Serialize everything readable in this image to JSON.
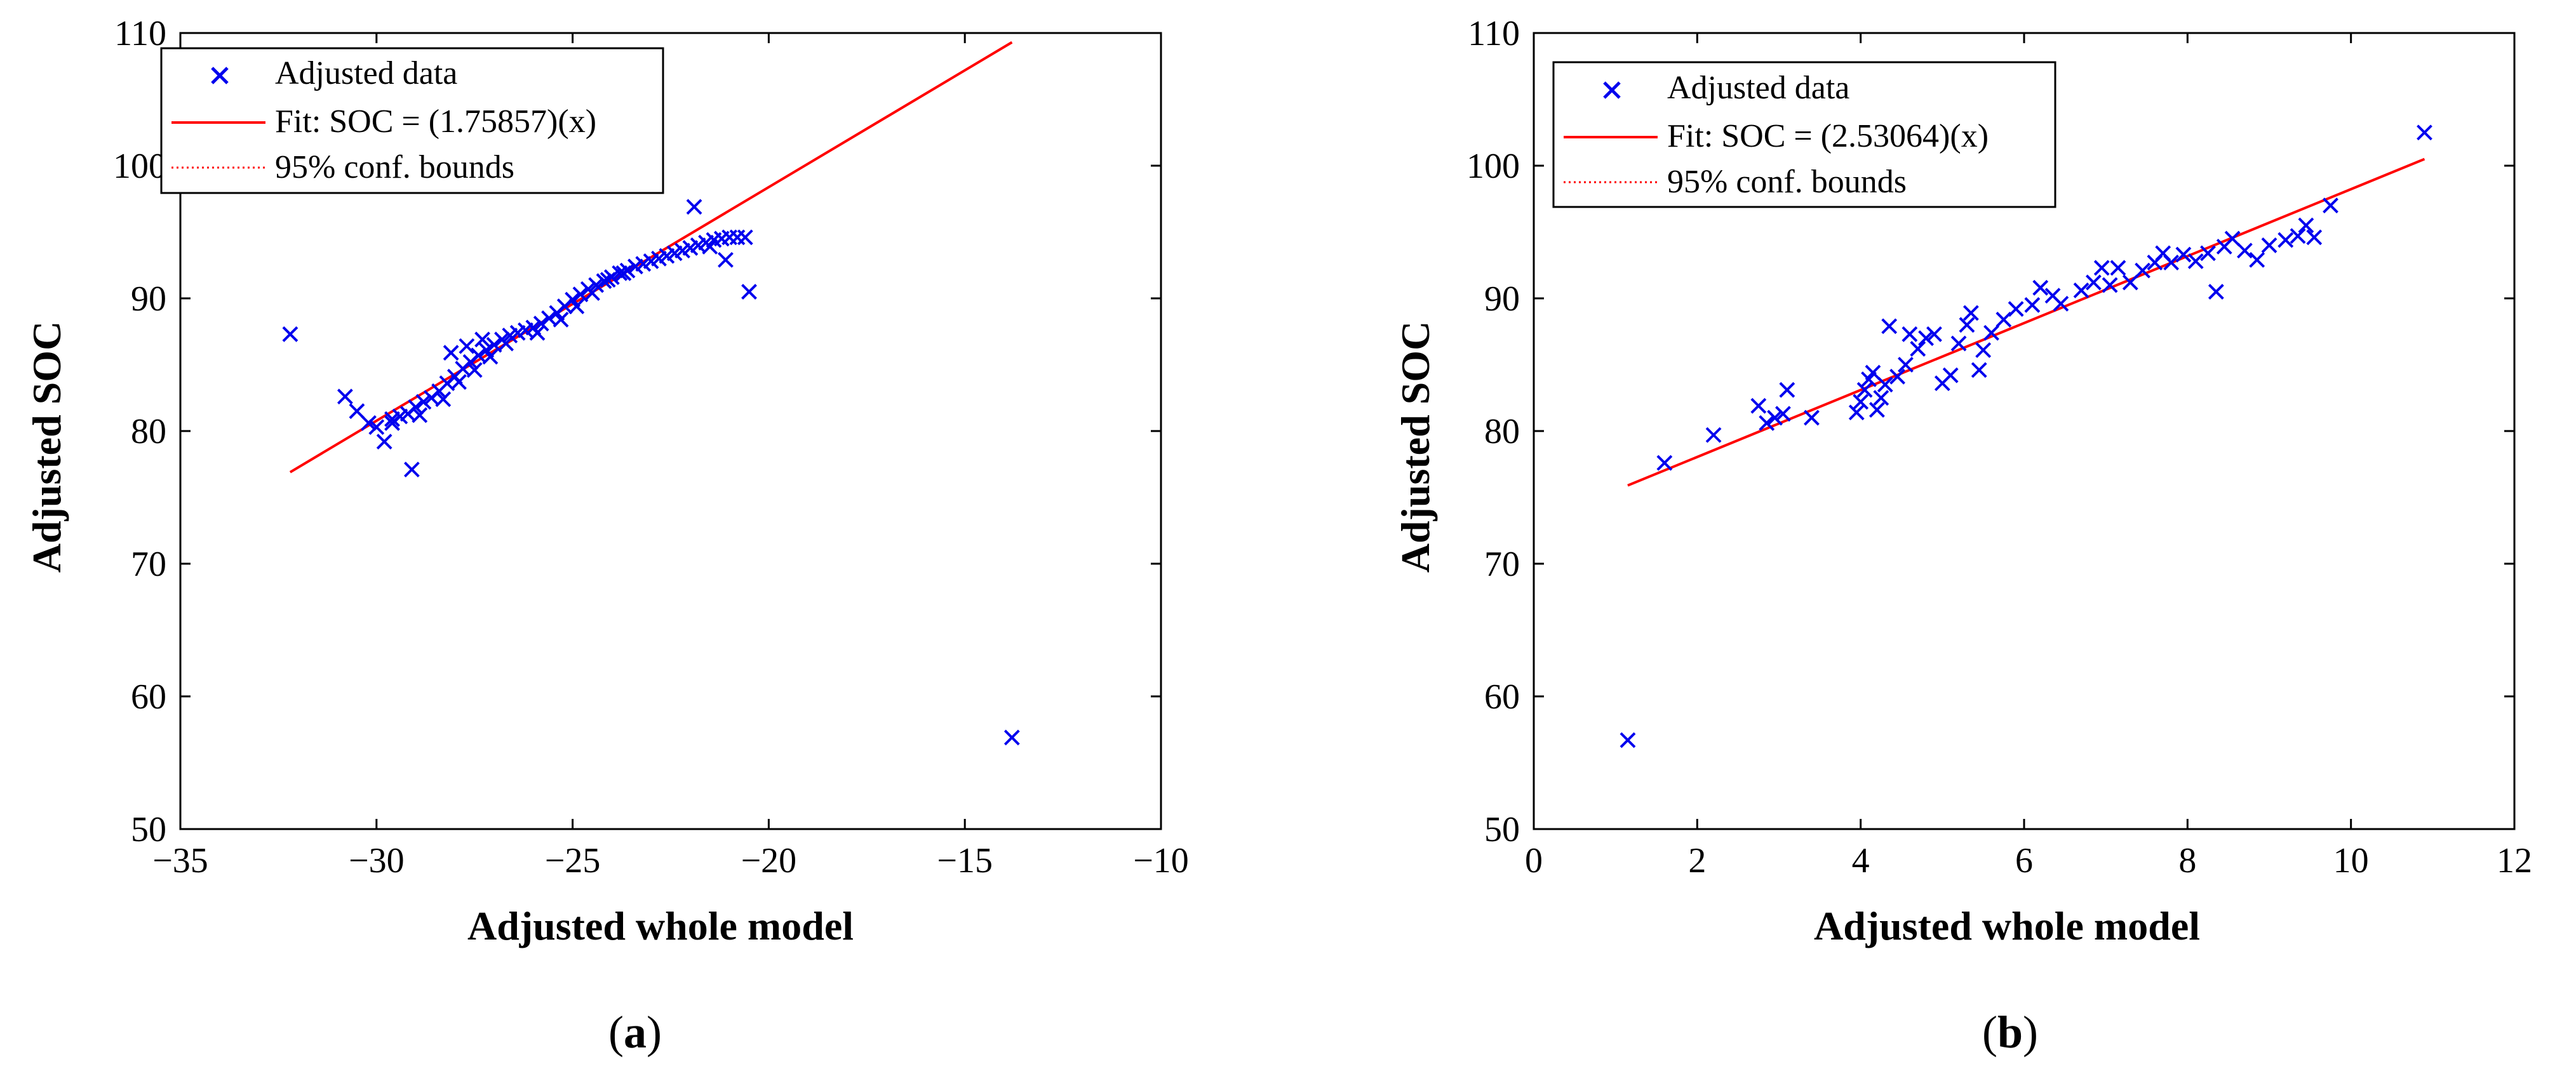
{
  "chart_data": [
    {
      "type": "scatter",
      "panel_label": "(a)",
      "panel_letter": "a",
      "xlabel": "Adjusted whole model",
      "ylabel": "Adjusted SOC",
      "xlim": [
        -35,
        -10
      ],
      "ylim": [
        50,
        110
      ],
      "xticks": [
        -35,
        -30,
        -25,
        -20,
        -15,
        -10
      ],
      "xtick_labels": [
        "−35",
        "−30",
        "−25",
        "−20",
        "−15",
        "−10"
      ],
      "yticks": [
        50,
        60,
        70,
        80,
        90,
        100,
        110
      ],
      "ytick_labels": [
        "50",
        "60",
        "70",
        "80",
        "90",
        "100",
        "110"
      ],
      "legend": {
        "placement": "top-left",
        "entries": [
          "Adjusted data",
          "Fit: SOC = (1.75857)(x)",
          "95% conf. bounds"
        ]
      },
      "colors": {
        "data": "#0000ee",
        "fit": "#ff0000",
        "bounds": "#ff0000",
        "axes": "#000000"
      },
      "fit_line": {
        "x": [
          -32.2,
          -13.8
        ],
        "y": [
          76.9,
          109.3
        ]
      },
      "series": [
        {
          "name": "Adjusted data",
          "marker": "x",
          "points": [
            [
              -32.2,
              87.3
            ],
            [
              -30.8,
              82.6
            ],
            [
              -30.5,
              81.5
            ],
            [
              -30.2,
              80.6
            ],
            [
              -30.0,
              80.3
            ],
            [
              -29.8,
              79.2
            ],
            [
              -29.6,
              80.9
            ],
            [
              -29.4,
              81.1
            ],
            [
              -29.2,
              81.3
            ],
            [
              -29.1,
              77.1
            ],
            [
              -29.0,
              81.8
            ],
            [
              -28.8,
              82.2
            ],
            [
              -28.6,
              82.5
            ],
            [
              -28.4,
              83.0
            ],
            [
              -28.2,
              83.6
            ],
            [
              -28.0,
              84.1
            ],
            [
              -27.8,
              84.7
            ],
            [
              -27.6,
              85.2
            ],
            [
              -27.4,
              85.7
            ],
            [
              -27.2,
              86.1
            ],
            [
              -27.0,
              86.5
            ],
            [
              -26.8,
              86.9
            ],
            [
              -26.6,
              87.2
            ],
            [
              -26.4,
              87.4
            ],
            [
              -26.2,
              87.6
            ],
            [
              -26.0,
              87.8
            ],
            [
              -25.8,
              88.1
            ],
            [
              -25.6,
              88.5
            ],
            [
              -25.4,
              88.9
            ],
            [
              -25.2,
              89.4
            ],
            [
              -25.0,
              89.9
            ],
            [
              -24.8,
              90.3
            ],
            [
              -24.6,
              90.7
            ],
            [
              -24.4,
              91.0
            ],
            [
              -24.2,
              91.3
            ],
            [
              -24.0,
              91.6
            ],
            [
              -23.8,
              91.9
            ],
            [
              -23.6,
              92.1
            ],
            [
              -23.4,
              92.4
            ],
            [
              -23.2,
              92.6
            ],
            [
              -23.0,
              92.8
            ],
            [
              -22.8,
              93.0
            ],
            [
              -22.6,
              93.2
            ],
            [
              -22.4,
              93.4
            ],
            [
              -22.2,
              93.6
            ],
            [
              -22.0,
              93.8
            ],
            [
              -21.8,
              94.0
            ],
            [
              -21.6,
              94.2
            ],
            [
              -21.4,
              94.4
            ],
            [
              -21.2,
              94.5
            ],
            [
              -21.0,
              94.6
            ],
            [
              -20.8,
              94.6
            ],
            [
              -20.6,
              94.6
            ],
            [
              -29.6,
              80.6
            ],
            [
              -28.9,
              81.2
            ],
            [
              -28.3,
              82.4
            ],
            [
              -27.9,
              83.7
            ],
            [
              -27.5,
              84.6
            ],
            [
              -27.1,
              85.6
            ],
            [
              -26.7,
              86.6
            ],
            [
              -28.1,
              85.9
            ],
            [
              -27.7,
              86.4
            ],
            [
              -27.3,
              86.9
            ],
            [
              -25.9,
              87.4
            ],
            [
              -25.3,
              88.4
            ],
            [
              -24.9,
              89.4
            ],
            [
              -24.5,
              90.4
            ],
            [
              -24.1,
              91.4
            ],
            [
              -23.7,
              91.9
            ],
            [
              -21.9,
              96.9
            ],
            [
              -21.5,
              93.9
            ],
            [
              -21.1,
              92.9
            ],
            [
              -20.5,
              90.5
            ],
            [
              -13.8,
              56.9
            ]
          ]
        }
      ]
    },
    {
      "type": "scatter",
      "panel_label": "(b)",
      "panel_letter": "b",
      "xlabel": "Adjusted whole model",
      "ylabel": "Adjusted SOC",
      "xlim": [
        0,
        12
      ],
      "ylim": [
        50,
        110
      ],
      "xticks": [
        0,
        2,
        4,
        6,
        8,
        10,
        12
      ],
      "xtick_labels": [
        "0",
        "2",
        "4",
        "6",
        "8",
        "10",
        "12"
      ],
      "yticks": [
        50,
        60,
        70,
        80,
        90,
        100,
        110
      ],
      "ytick_labels": [
        "50",
        "60",
        "70",
        "80",
        "90",
        "100",
        "110"
      ],
      "legend": {
        "placement": "top-left",
        "entries": [
          "Adjusted data",
          "Fit: SOC = (2.53064)(x)",
          "95% conf. bounds"
        ]
      },
      "colors": {
        "data": "#0000ee",
        "fit": "#ff0000",
        "bounds": "#ff0000",
        "axes": "#000000"
      },
      "fit_line": {
        "x": [
          1.15,
          10.9
        ],
        "y": [
          75.9,
          100.5
        ]
      },
      "series": [
        {
          "name": "Adjusted data",
          "marker": "x",
          "points": [
            [
              1.15,
              56.7
            ],
            [
              1.6,
              77.6
            ],
            [
              2.2,
              79.7
            ],
            [
              2.75,
              81.9
            ],
            [
              2.85,
              80.6
            ],
            [
              2.95,
              81.0
            ],
            [
              3.05,
              81.3
            ],
            [
              3.1,
              83.1
            ],
            [
              3.4,
              81.0
            ],
            [
              3.95,
              81.4
            ],
            [
              4.0,
              82.2
            ],
            [
              4.05,
              83.1
            ],
            [
              4.1,
              83.9
            ],
            [
              4.15,
              84.4
            ],
            [
              4.2,
              81.6
            ],
            [
              4.25,
              82.5
            ],
            [
              4.3,
              83.5
            ],
            [
              4.35,
              87.9
            ],
            [
              4.45,
              84.1
            ],
            [
              4.55,
              85.0
            ],
            [
              4.6,
              87.3
            ],
            [
              4.7,
              86.2
            ],
            [
              4.8,
              87.0
            ],
            [
              4.9,
              87.3
            ],
            [
              5.0,
              83.6
            ],
            [
              5.1,
              84.2
            ],
            [
              5.2,
              86.6
            ],
            [
              5.3,
              88.0
            ],
            [
              5.35,
              88.9
            ],
            [
              5.45,
              84.6
            ],
            [
              5.5,
              86.1
            ],
            [
              5.6,
              87.4
            ],
            [
              5.75,
              88.4
            ],
            [
              5.9,
              89.2
            ],
            [
              6.1,
              89.5
            ],
            [
              6.2,
              90.8
            ],
            [
              6.35,
              90.2
            ],
            [
              6.45,
              89.6
            ],
            [
              6.7,
              90.6
            ],
            [
              6.85,
              91.2
            ],
            [
              6.95,
              92.3
            ],
            [
              7.05,
              91.0
            ],
            [
              7.15,
              92.3
            ],
            [
              7.3,
              91.2
            ],
            [
              7.45,
              92.1
            ],
            [
              7.6,
              92.7
            ],
            [
              7.7,
              93.4
            ],
            [
              7.8,
              92.7
            ],
            [
              7.95,
              93.3
            ],
            [
              8.1,
              92.8
            ],
            [
              8.25,
              93.4
            ],
            [
              8.35,
              90.5
            ],
            [
              8.45,
              93.9
            ],
            [
              8.55,
              94.5
            ],
            [
              8.7,
              93.6
            ],
            [
              8.85,
              92.9
            ],
            [
              9.0,
              94.0
            ],
            [
              9.2,
              94.4
            ],
            [
              9.35,
              94.7
            ],
            [
              9.45,
              95.5
            ],
            [
              9.55,
              94.6
            ],
            [
              9.75,
              97.0
            ],
            [
              10.9,
              102.5
            ]
          ]
        }
      ]
    }
  ]
}
